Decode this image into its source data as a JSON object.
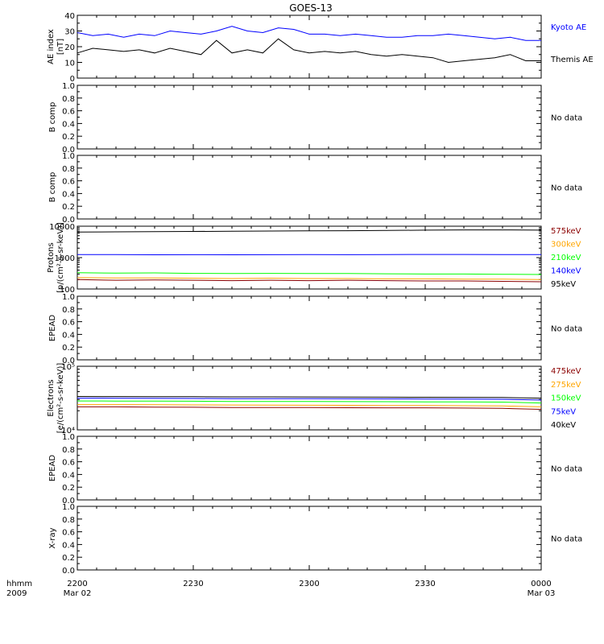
{
  "title": "GOES-13",
  "time_axis": {
    "row1_label": "hhmm",
    "row2_label": "2009",
    "ticks": [
      {
        "t": 0,
        "label": "2200",
        "date": "Mar 02"
      },
      {
        "t": 30,
        "label": "2230",
        "date": ""
      },
      {
        "t": 60,
        "label": "2300",
        "date": ""
      },
      {
        "t": 90,
        "label": "2330",
        "date": ""
      },
      {
        "t": 120,
        "label": "0000",
        "date": "Mar 03"
      }
    ]
  },
  "colors": {
    "black": "#000000",
    "blue": "#0000ff",
    "green": "#00ff00",
    "orange": "#ffa500",
    "darkred": "#8b0000"
  },
  "no_data_text": "No data",
  "chart_data": [
    {
      "type": "line",
      "ylabel": "AE index",
      "ylabel2": "[nT]",
      "ylim": [
        0,
        40
      ],
      "yscale": "linear",
      "yticks": [
        0,
        10,
        20,
        30,
        40
      ],
      "x": [
        0,
        4,
        8,
        12,
        16,
        20,
        24,
        28,
        32,
        36,
        40,
        44,
        48,
        52,
        56,
        60,
        64,
        68,
        72,
        76,
        80,
        84,
        88,
        92,
        96,
        100,
        104,
        108,
        112,
        116,
        120
      ],
      "series": [
        {
          "name": "Kyoto AE",
          "color": "#0000ff",
          "values": [
            29,
            27,
            28,
            26,
            28,
            27,
            30,
            29,
            28,
            30,
            33,
            30,
            29,
            32,
            31,
            28,
            28,
            27,
            28,
            27,
            26,
            26,
            27,
            27,
            28,
            27,
            26,
            25,
            26,
            24,
            24
          ]
        },
        {
          "name": "Themis AE",
          "color": "#000000",
          "values": [
            16,
            19,
            18,
            17,
            18,
            16,
            19,
            17,
            15,
            24,
            16,
            18,
            16,
            25,
            18,
            16,
            17,
            16,
            17,
            15,
            14,
            15,
            14,
            13,
            10,
            11,
            12,
            13,
            15,
            11,
            11
          ]
        }
      ]
    },
    {
      "type": "line",
      "ylabel": "B comp",
      "ylim": [
        0,
        1
      ],
      "yscale": "linear",
      "yticks": [
        0.0,
        0.2,
        0.4,
        0.6,
        0.8,
        1.0
      ],
      "series": [],
      "no_data": true
    },
    {
      "type": "line",
      "ylabel": "B comp",
      "ylim": [
        0,
        1
      ],
      "yscale": "linear",
      "yticks": [
        0.0,
        0.2,
        0.4,
        0.6,
        0.8,
        1.0
      ],
      "series": [],
      "no_data": true
    },
    {
      "type": "line",
      "ylabel": "Protons",
      "ylabel2": "[p/(cm²-s-sr-keV)]",
      "ylim": [
        100,
        10000
      ],
      "yscale": "log",
      "yticks": [
        100,
        1000,
        10000
      ],
      "x": [
        0,
        10,
        20,
        30,
        40,
        50,
        60,
        70,
        80,
        90,
        100,
        110,
        120
      ],
      "series": [
        {
          "name": "575keV",
          "color": "#8b0000",
          "values": [
            200,
            190,
            195,
            190,
            185,
            190,
            185,
            190,
            185,
            180,
            180,
            175,
            170
          ]
        },
        {
          "name": "300keV",
          "color": "#ffa500",
          "values": [
            230,
            225,
            225,
            220,
            215,
            220,
            215,
            215,
            210,
            210,
            205,
            205,
            200
          ]
        },
        {
          "name": "210keV",
          "color": "#00ff00",
          "values": [
            330,
            320,
            325,
            315,
            310,
            315,
            310,
            310,
            305,
            300,
            300,
            295,
            290
          ]
        },
        {
          "name": "140keV",
          "color": "#0000ff",
          "values": [
            1250,
            1250,
            1230,
            1240,
            1230,
            1240,
            1250,
            1240,
            1250,
            1260,
            1260,
            1250,
            1250
          ]
        },
        {
          "name": "95keV",
          "color": "#000000",
          "values": [
            6500,
            6600,
            6700,
            6800,
            6900,
            7000,
            7100,
            7200,
            7300,
            7500,
            7600,
            7600,
            7500
          ]
        }
      ]
    },
    {
      "type": "line",
      "ylabel": "EPEAD",
      "ylim": [
        0,
        1
      ],
      "yscale": "linear",
      "yticks": [
        0.0,
        0.2,
        0.4,
        0.6,
        0.8,
        1.0
      ],
      "series": [],
      "no_data": true
    },
    {
      "type": "line",
      "ylabel": "Electrons",
      "ylabel2": "[e/(cm²-s-sr-keV)]",
      "ylim": [
        10000,
        100000
      ],
      "yscale": "log",
      "yticks": [
        10000,
        100000
      ],
      "x": [
        0,
        10,
        20,
        30,
        40,
        50,
        60,
        70,
        80,
        90,
        100,
        110,
        120
      ],
      "series": [
        {
          "name": "475keV",
          "color": "#8b0000",
          "values": [
            23000,
            23000,
            22800,
            22700,
            22500,
            22500,
            22400,
            22300,
            22200,
            22200,
            22000,
            21800,
            21000
          ]
        },
        {
          "name": "275keV",
          "color": "#ffa500",
          "values": [
            25000,
            25000,
            24800,
            24700,
            24600,
            24500,
            24400,
            24300,
            24200,
            24200,
            24000,
            23800,
            23000
          ]
        },
        {
          "name": "150keV",
          "color": "#00ff00",
          "values": [
            28500,
            28400,
            28300,
            28200,
            28000,
            28000,
            27900,
            27800,
            27700,
            27600,
            27500,
            27300,
            26500
          ]
        },
        {
          "name": "75keV",
          "color": "#0000ff",
          "values": [
            31500,
            31400,
            31300,
            31200,
            31000,
            31000,
            30900,
            30800,
            30700,
            30600,
            30500,
            30300,
            29500
          ]
        },
        {
          "name": "40keV",
          "color": "#000000",
          "values": [
            33500,
            33400,
            33300,
            33200,
            33000,
            33000,
            32900,
            32800,
            32700,
            32600,
            32500,
            32300,
            31500
          ]
        }
      ]
    },
    {
      "type": "line",
      "ylabel": "EPEAD",
      "ylim": [
        0,
        1
      ],
      "yscale": "linear",
      "yticks": [
        0.0,
        0.2,
        0.4,
        0.6,
        0.8,
        1.0
      ],
      "series": [],
      "no_data": true
    },
    {
      "type": "line",
      "ylabel": "X-ray",
      "ylim": [
        0,
        1
      ],
      "yscale": "linear",
      "yticks": [
        0.0,
        0.2,
        0.4,
        0.6,
        0.8,
        1.0
      ],
      "series": [],
      "no_data": true
    }
  ]
}
